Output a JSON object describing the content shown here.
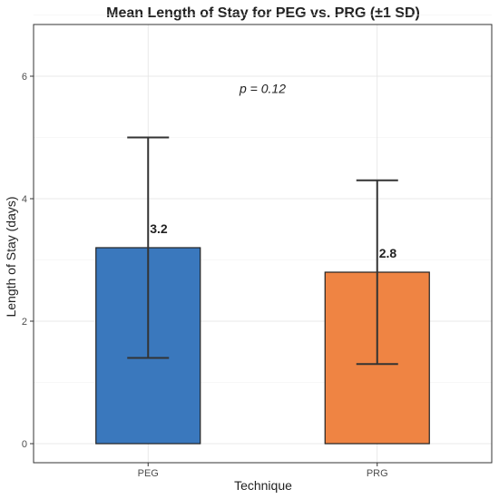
{
  "chart_data": {
    "type": "bar",
    "title": "Mean Length of Stay for PEG vs. PRG (±1 SD)",
    "xlabel": "Technique",
    "ylabel": "Length of Stay (days)",
    "categories": [
      "PEG",
      "PRG"
    ],
    "values": [
      3.2,
      2.8
    ],
    "sd": [
      1.8,
      1.5
    ],
    "data_labels": [
      "3.2",
      "2.8"
    ],
    "colors": [
      "#3a78bd",
      "#ef8443"
    ],
    "ylim": [
      0,
      7
    ],
    "yticks": [
      0,
      2,
      4,
      6
    ],
    "ytick_labels": [
      "0",
      "2",
      "4",
      "6"
    ],
    "annotation": "p = 0.12",
    "annotation_pos": {
      "x": 0.5,
      "y": 5.8
    },
    "grid": true,
    "legend": "none"
  }
}
